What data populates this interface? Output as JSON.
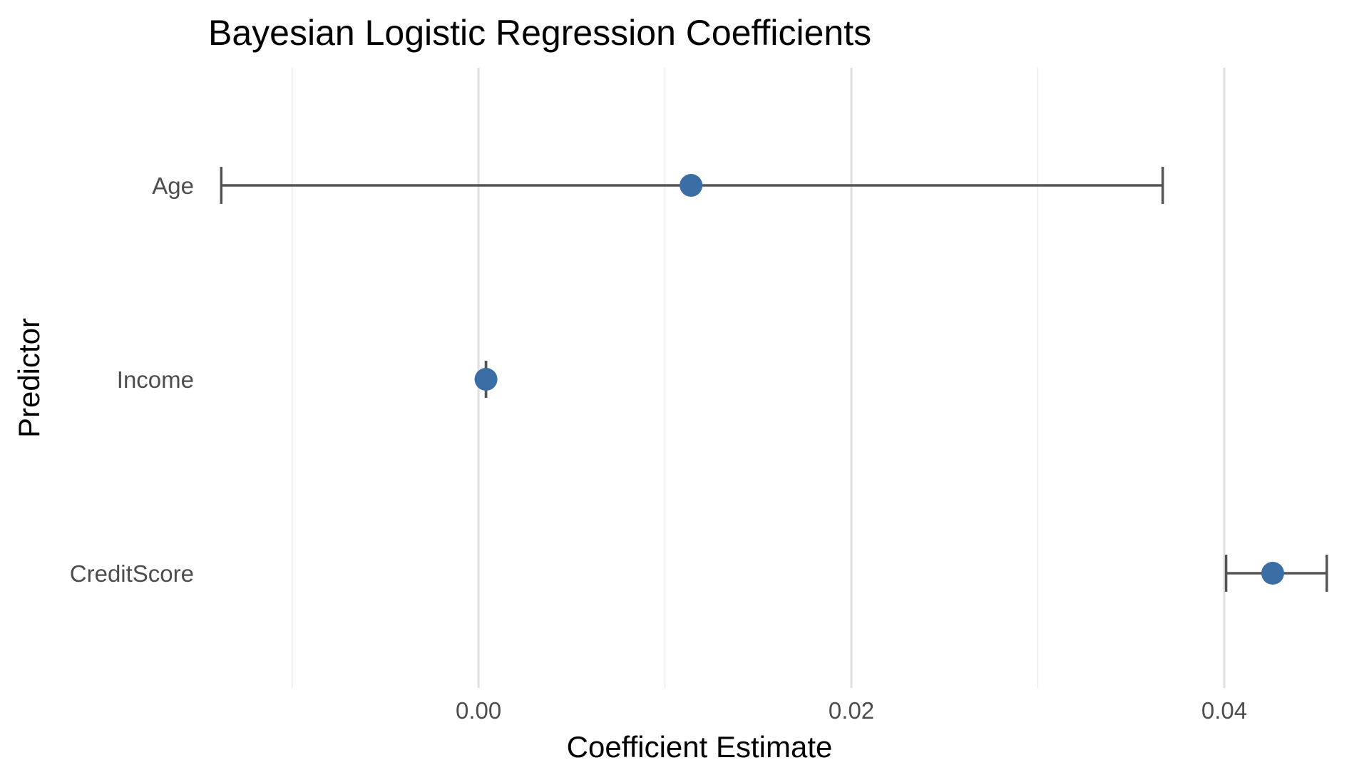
{
  "chart_data": {
    "type": "scatter",
    "title": "Bayesian Logistic Regression Coefficients",
    "xlabel": "Coefficient Estimate",
    "ylabel": "Predictor",
    "xlim": [
      -0.0145,
      0.047
    ],
    "x_major_ticks": [
      0.0,
      0.02,
      0.04
    ],
    "x_tick_labels": [
      "0.00",
      "0.02",
      "0.04"
    ],
    "x_minor_ticks": [
      -0.01,
      0.01,
      0.03
    ],
    "categories": [
      "Age",
      "Income",
      "CreditScore"
    ],
    "estimates": [
      0.0114,
      0.0004,
      0.0426
    ],
    "lower": [
      -0.0138,
      0.0004,
      0.0401
    ],
    "upper": [
      0.0367,
      0.0004,
      0.0455
    ],
    "point_color": "#3a6ea5",
    "errorbar_color": "#555555",
    "grid": true,
    "legend": "none"
  }
}
